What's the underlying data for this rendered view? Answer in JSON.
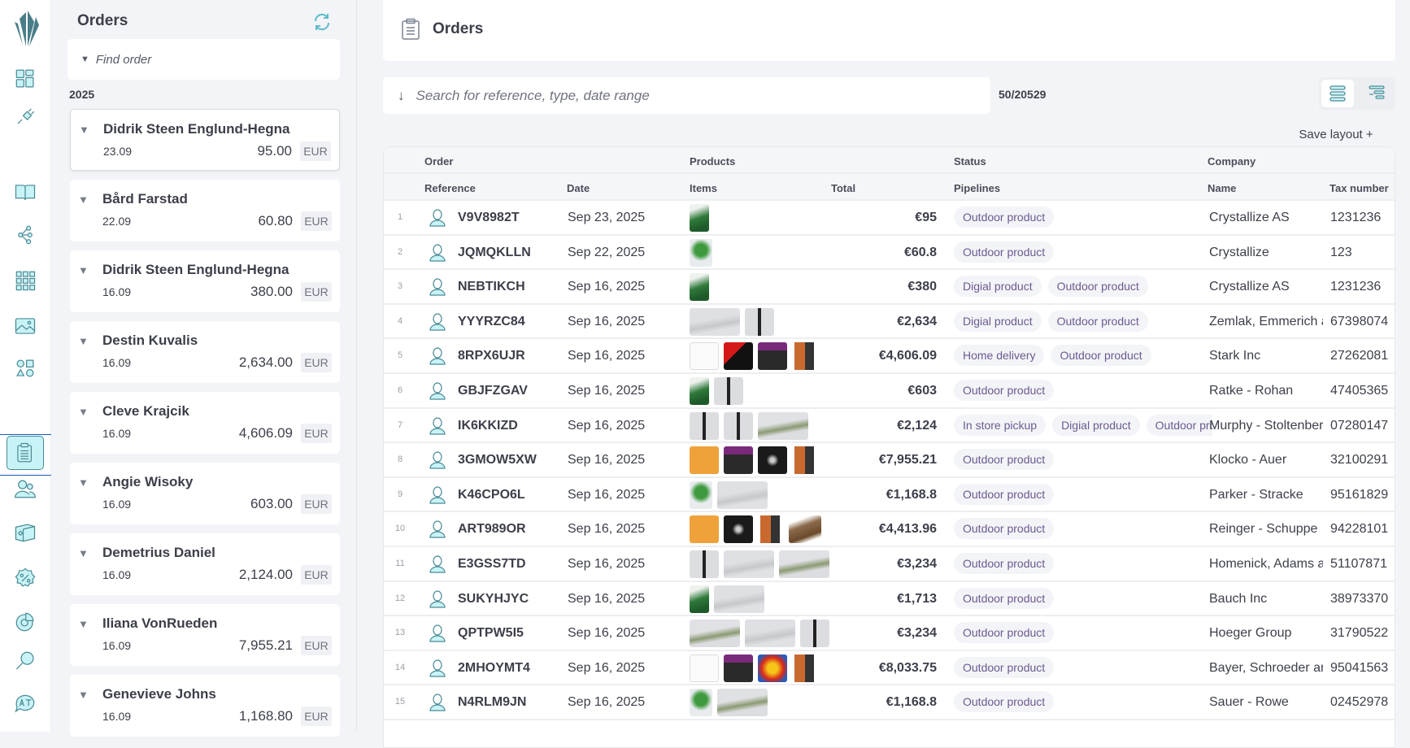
{
  "rail": {
    "items": [
      "dashboard-icon",
      "plug-icon",
      "book-icon",
      "graph-icon",
      "grid-icon",
      "image-icon",
      "shapes-icon",
      "orders-icon",
      "customers-icon",
      "box-icon",
      "discount-icon",
      "chart-icon",
      "search-icon",
      "translate-icon"
    ],
    "active": "orders-icon",
    "accent": "#4a8b96"
  },
  "list": {
    "title": "Orders",
    "find_placeholder": "Find order",
    "year": "2025",
    "orders": [
      {
        "name": "Didrik Steen Englund-Hegna",
        "date": "23.09",
        "amount": "95.00",
        "currency": "EUR"
      },
      {
        "name": "Bård Farstad",
        "date": "22.09",
        "amount": "60.80",
        "currency": "EUR"
      },
      {
        "name": "Didrik Steen Englund-Hegna",
        "date": "16.09",
        "amount": "380.00",
        "currency": "EUR"
      },
      {
        "name": "Destin Kuvalis",
        "date": "16.09",
        "amount": "2,634.00",
        "currency": "EUR"
      },
      {
        "name": "Cleve Krajcik",
        "date": "16.09",
        "amount": "4,606.09",
        "currency": "EUR"
      },
      {
        "name": "Angie Wisoky",
        "date": "16.09",
        "amount": "603.00",
        "currency": "EUR"
      },
      {
        "name": "Demetrius Daniel",
        "date": "16.09",
        "amount": "2,124.00",
        "currency": "EUR"
      },
      {
        "name": "Iliana VonRueden",
        "date": "16.09",
        "amount": "7,955.21",
        "currency": "EUR"
      },
      {
        "name": "Genevieve Johns",
        "date": "16.09",
        "amount": "1,168.80",
        "currency": "EUR"
      }
    ]
  },
  "header": {
    "title": "Orders"
  },
  "search": {
    "placeholder": "Search for reference, type, date range"
  },
  "count": "50/20529",
  "save_layout": "Save layout +",
  "table": {
    "groups": [
      "Order",
      "Products",
      "Status",
      "Company"
    ],
    "columns": [
      "Reference",
      "Date",
      "Items",
      "Total",
      "Pipelines",
      "Name",
      "Tax number"
    ],
    "rows": [
      {
        "n": "1",
        "ref": "V9V8982T",
        "date": "Sep 23, 2025",
        "items": [
          "plant"
        ],
        "total": "€95",
        "pipelines": [
          "Outdoor product"
        ],
        "company": "Crystallize AS",
        "tax": "1231236"
      },
      {
        "n": "2",
        "ref": "JQMQKLLN",
        "date": "Sep 22, 2025",
        "items": [
          "plant-pot"
        ],
        "total": "€60.8",
        "pipelines": [
          "Outdoor product"
        ],
        "company": "Crystallize",
        "tax": "123"
      },
      {
        "n": "3",
        "ref": "NEBTIKCH",
        "date": "Sep 16, 2025",
        "items": [
          "plant"
        ],
        "total": "€380",
        "pipelines": [
          "Digial product",
          "Outdoor product"
        ],
        "company": "Crystallize AS",
        "tax": "1231236"
      },
      {
        "n": "4",
        "ref": "YYYRZC84",
        "date": "Sep 16, 2025",
        "items": [
          "chair",
          "lamp"
        ],
        "total": "€2,634",
        "pipelines": [
          "Digial product",
          "Outdoor product"
        ],
        "company": "Zemlak, Emmerich and",
        "tax": "67398074"
      },
      {
        "n": "5",
        "ref": "8RPX6UJR",
        "date": "Sep 16, 2025",
        "items": [
          "beatles",
          "album-red",
          "sabbath",
          "speaker"
        ],
        "total": "€4,606.09",
        "pipelines": [
          "Home delivery",
          "Outdoor product"
        ],
        "company": "Stark Inc",
        "tax": "27262081"
      },
      {
        "n": "6",
        "ref": "GBJFZGAV",
        "date": "Sep 16, 2025",
        "items": [
          "plant",
          "lamp"
        ],
        "total": "€603",
        "pipelines": [
          "Outdoor product"
        ],
        "company": "Ratke - Rohan",
        "tax": "47405365"
      },
      {
        "n": "7",
        "ref": "IK6KKIZD",
        "date": "Sep 16, 2025",
        "items": [
          "lamp",
          "lamp",
          "chair-green"
        ],
        "total": "€2,124",
        "pipelines": [
          "In store pickup",
          "Digial product",
          "Outdoor product"
        ],
        "company": "Murphy - Stoltenberg",
        "tax": "07280147"
      },
      {
        "n": "8",
        "ref": "3GMOW5XW",
        "date": "Sep 16, 2025",
        "items": [
          "orange",
          "sabbath",
          "album-dark",
          "speaker"
        ],
        "total": "€7,955.21",
        "pipelines": [
          "Outdoor product"
        ],
        "company": "Klocko - Auer",
        "tax": "32100291"
      },
      {
        "n": "9",
        "ref": "K46CPO6L",
        "date": "Sep 16, 2025",
        "items": [
          "plant-pot",
          "chair"
        ],
        "total": "€1,168.8",
        "pipelines": [
          "Outdoor product"
        ],
        "company": "Parker - Stracke",
        "tax": "95161829"
      },
      {
        "n": "10",
        "ref": "ART989OR",
        "date": "Sep 16, 2025",
        "items": [
          "orange",
          "album-dark",
          "speaker",
          "turntable"
        ],
        "total": "€4,413.96",
        "pipelines": [
          "Outdoor product"
        ],
        "company": "Reinger - Schuppe",
        "tax": "94228101"
      },
      {
        "n": "11",
        "ref": "E3GSS7TD",
        "date": "Sep 16, 2025",
        "items": [
          "lamp",
          "chair",
          "chair-green"
        ],
        "total": "€3,234",
        "pipelines": [
          "Outdoor product"
        ],
        "company": "Homenick, Adams and",
        "tax": "51107871"
      },
      {
        "n": "12",
        "ref": "SUKYHJYC",
        "date": "Sep 16, 2025",
        "items": [
          "plant",
          "chair"
        ],
        "total": "€1,713",
        "pipelines": [
          "Outdoor product"
        ],
        "company": "Bauch Inc",
        "tax": "38973370"
      },
      {
        "n": "13",
        "ref": "QPTPW5I5",
        "date": "Sep 16, 2025",
        "items": [
          "chair-green",
          "chair",
          "lamp"
        ],
        "total": "€3,234",
        "pipelines": [
          "Outdoor product"
        ],
        "company": "Hoeger Group",
        "tax": "31790522"
      },
      {
        "n": "14",
        "ref": "2MHOYMT4",
        "date": "Sep 16, 2025",
        "items": [
          "beatles",
          "sabbath",
          "album-fire",
          "speaker"
        ],
        "total": "€8,033.75",
        "pipelines": [
          "Outdoor product"
        ],
        "company": "Bayer, Schroeder and",
        "tax": "95041563"
      },
      {
        "n": "15",
        "ref": "N4RLM9JN",
        "date": "Sep 16, 2025",
        "items": [
          "plant-pot",
          "chair-green"
        ],
        "total": "€1,168.8",
        "pipelines": [
          "Outdoor product"
        ],
        "company": "Sauer - Rowe",
        "tax": "02452978"
      }
    ]
  },
  "colors": {
    "pill_text": "#6b5a91",
    "pill_bg": "#f3f4f7",
    "icon_teal": "#4a8b96",
    "icon_fill": "#c8f3f6"
  }
}
